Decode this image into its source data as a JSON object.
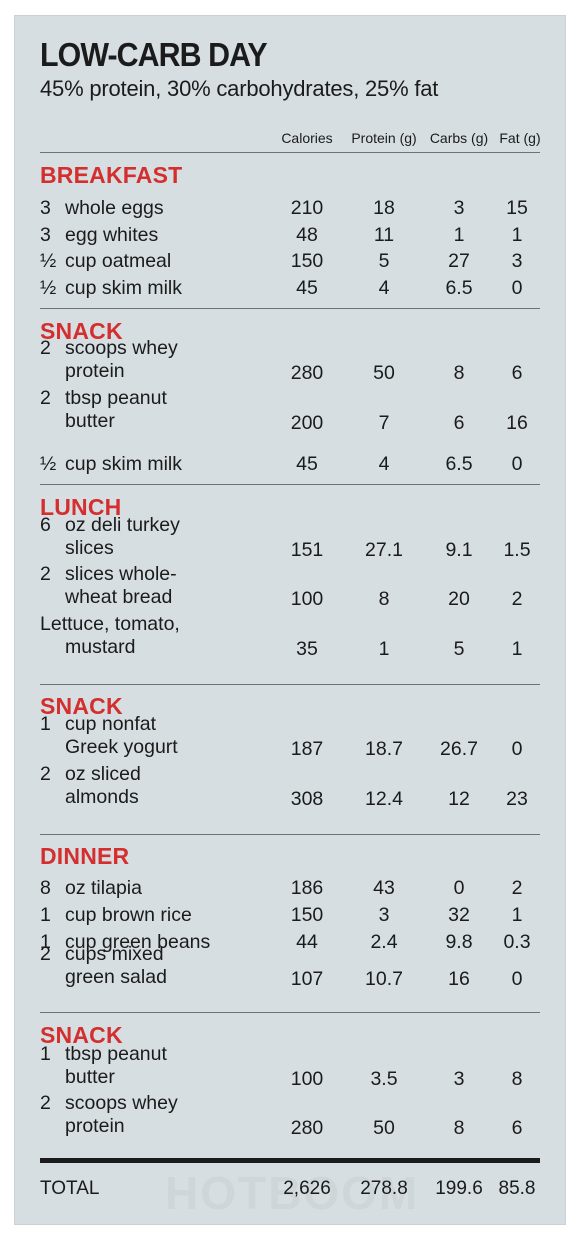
{
  "title": "LOW-CARB DAY",
  "subtitle": "45% protein, 30% carbohydrates, 25% fat",
  "columns": [
    "Calories",
    "Protein (g)",
    "Carbs (g)",
    "Fat (g)"
  ],
  "sections": [
    {
      "name": "BREAKFAST",
      "rows": [
        {
          "qty": "3",
          "food1": "whole eggs",
          "food2": "",
          "calories": "210",
          "protein": "18",
          "carbs": "3",
          "fat": "15"
        },
        {
          "qty": "3",
          "food1": "egg whites",
          "food2": "",
          "calories": "48",
          "protein": "11",
          "carbs": "1",
          "fat": "1"
        },
        {
          "qty": "½",
          "food1": "cup oatmeal",
          "food2": "",
          "calories": "150",
          "protein": "5",
          "carbs": "27",
          "fat": "3"
        },
        {
          "qty": "½",
          "food1": "cup skim milk",
          "food2": "",
          "calories": "45",
          "protein": "4",
          "carbs": "6.5",
          "fat": "0"
        }
      ]
    },
    {
      "name": "SNACK",
      "rows": [
        {
          "qty": "2",
          "food1": "scoops whey",
          "food2": "protein",
          "calories": "280",
          "protein": "50",
          "carbs": "8",
          "fat": "6"
        },
        {
          "qty": "2",
          "food1": "tbsp peanut",
          "food2": "butter",
          "calories": "200",
          "protein": "7",
          "carbs": "6",
          "fat": "16"
        },
        {
          "qty": "½",
          "food1": "cup skim milk",
          "food2": "",
          "calories": "45",
          "protein": "4",
          "carbs": "6.5",
          "fat": "0"
        }
      ]
    },
    {
      "name": "LUNCH",
      "rows": [
        {
          "qty": "6",
          "food1": "oz deli turkey",
          "food2": "slices",
          "calories": "151",
          "protein": "27.1",
          "carbs": "9.1",
          "fat": "1.5"
        },
        {
          "qty": "2",
          "food1": "slices whole-",
          "food2": "wheat bread",
          "calories": "100",
          "protein": "8",
          "carbs": "20",
          "fat": "2"
        },
        {
          "qty": "",
          "food1": "Lettuce, tomato,",
          "food2": "mustard",
          "calories": "35",
          "protein": "1",
          "carbs": "5",
          "fat": "1"
        }
      ]
    },
    {
      "name": "SNACK",
      "rows": [
        {
          "qty": "1",
          "food1": "cup nonfat",
          "food2": "Greek yogurt",
          "calories": "187",
          "protein": "18.7",
          "carbs": "26.7",
          "fat": "0"
        },
        {
          "qty": "2",
          "food1": "oz sliced",
          "food2": "almonds",
          "calories": "308",
          "protein": "12.4",
          "carbs": "12",
          "fat": "23"
        }
      ]
    },
    {
      "name": "DINNER",
      "rows": [
        {
          "qty": "8",
          "food1": "oz tilapia",
          "food2": "",
          "calories": "186",
          "protein": "43",
          "carbs": "0",
          "fat": "2"
        },
        {
          "qty": "1",
          "food1": "cup brown rice",
          "food2": "",
          "calories": "150",
          "protein": "3",
          "carbs": "32",
          "fat": "1"
        },
        {
          "qty": "1",
          "food1": "cup green beans",
          "food2": "",
          "calories": "44",
          "protein": "2.4",
          "carbs": "9.8",
          "fat": "0.3"
        },
        {
          "qty": "2",
          "food1": "cups mixed",
          "food2": "green salad",
          "calories": "107",
          "protein": "10.7",
          "carbs": "16",
          "fat": "0"
        }
      ]
    },
    {
      "name": "SNACK",
      "rows": [
        {
          "qty": "1",
          "food1": "tbsp peanut",
          "food2": "butter",
          "calories": "100",
          "protein": "3.5",
          "carbs": "3",
          "fat": "8"
        },
        {
          "qty": "2",
          "food1": "scoops whey",
          "food2": "protein",
          "calories": "280",
          "protein": "50",
          "carbs": "8",
          "fat": "6"
        }
      ]
    }
  ],
  "total": {
    "label": "TOTAL",
    "calories": "2,626",
    "protein": "278.8",
    "carbs": "199.6",
    "fat": "85.8"
  },
  "watermark": "HOTBOOM",
  "colors": {
    "section": "#d42e2e",
    "background": "#d6dee2",
    "text": "#1b1b1b"
  }
}
